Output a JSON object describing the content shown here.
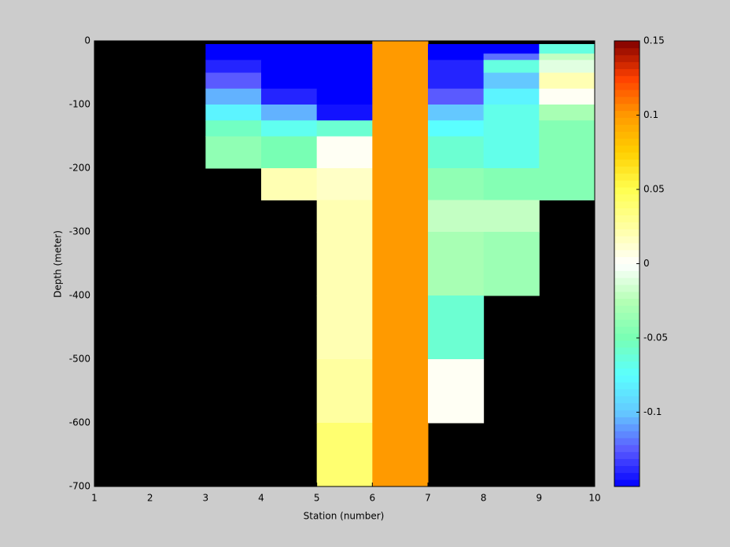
{
  "chart_data": {
    "type": "heatmap",
    "xlabel": "Station (number)",
    "ylabel": "Depth (meter)",
    "x": [
      1,
      2,
      3,
      4,
      5,
      6,
      7,
      8,
      9,
      10
    ],
    "y": [
      0,
      -5,
      -20,
      -30,
      -50,
      -75,
      -100,
      -125,
      -150,
      -200,
      -250,
      -300,
      -400,
      -500,
      -600,
      -700
    ],
    "values": [
      [
        null,
        null,
        null,
        null,
        null,
        0.1,
        null,
        null,
        null
      ],
      [
        null,
        null,
        -0.15,
        -0.15,
        -0.15,
        0.1,
        -0.15,
        -0.15,
        -0.065
      ],
      [
        null,
        null,
        -0.15,
        -0.15,
        -0.15,
        0.1,
        -0.15,
        -0.12,
        -0.02
      ],
      [
        null,
        null,
        -0.14,
        -0.15,
        -0.15,
        0.1,
        -0.14,
        -0.065,
        -0.01
      ],
      [
        null,
        null,
        -0.125,
        -0.15,
        -0.15,
        0.1,
        -0.14,
        -0.1,
        0.02
      ],
      [
        null,
        null,
        -0.105,
        -0.14,
        -0.15,
        0.1,
        -0.125,
        -0.08,
        0.003
      ],
      [
        null,
        null,
        -0.08,
        -0.105,
        -0.145,
        0.1,
        -0.1,
        -0.068,
        -0.03
      ],
      [
        null,
        null,
        -0.055,
        -0.07,
        -0.06,
        0.1,
        -0.075,
        -0.068,
        -0.045
      ],
      [
        null,
        null,
        -0.04,
        -0.05,
        0.003,
        0.1,
        -0.06,
        -0.068,
        -0.045
      ],
      [
        null,
        null,
        null,
        0.02,
        0.015,
        0.1,
        -0.04,
        -0.045,
        -0.045
      ],
      [
        null,
        null,
        null,
        null,
        0.02,
        0.1,
        -0.02,
        -0.02,
        null
      ],
      [
        null,
        null,
        null,
        null,
        0.02,
        0.1,
        -0.03,
        -0.035,
        null
      ],
      [
        null,
        null,
        null,
        null,
        0.02,
        0.1,
        -0.06,
        null,
        null
      ],
      [
        null,
        null,
        null,
        null,
        0.025,
        0.1,
        0.003,
        null,
        null
      ],
      [
        null,
        null,
        null,
        null,
        0.04,
        0.1,
        null,
        null,
        null
      ]
    ],
    "xlim": [
      1,
      10
    ],
    "ylim": [
      -700,
      0
    ],
    "xticks": [
      1,
      2,
      3,
      4,
      5,
      6,
      7,
      8,
      9,
      10
    ],
    "yticks": [
      0,
      -100,
      -200,
      -300,
      -400,
      -500,
      -600,
      -700
    ],
    "clim": [
      -0.15,
      0.15
    ],
    "cticks": [
      -0.1,
      -0.05,
      0,
      0.05,
      0.1,
      0.15
    ],
    "colormap": [
      "#0000ff",
      "#5a5aff",
      "#64c8ff",
      "#5affff",
      "#78ffb4",
      "#b4ffb4",
      "#ffffff",
      "#ffffa0",
      "#ffff50",
      "#ffd000",
      "#ff9a00",
      "#ff4000",
      "#800000"
    ],
    "background": "#000000"
  }
}
